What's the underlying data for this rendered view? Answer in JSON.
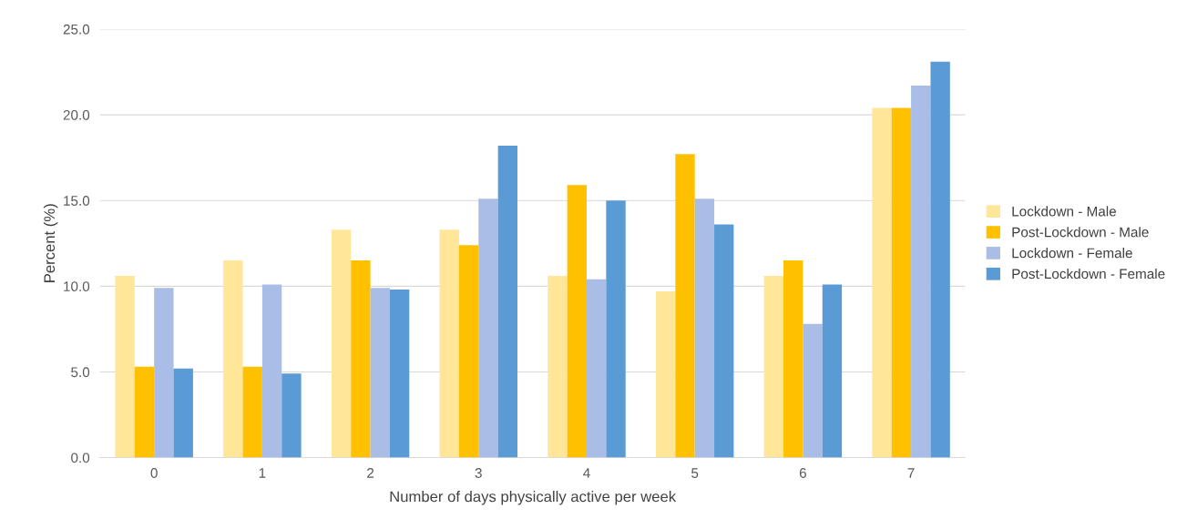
{
  "chart_data": {
    "type": "bar",
    "xlabel": "Number of days physically active per week",
    "ylabel": "Percent (%)",
    "categories": [
      "0",
      "1",
      "2",
      "3",
      "4",
      "5",
      "6",
      "7"
    ],
    "series": [
      {
        "name": "Lockdown - Male",
        "color": "#ffe699",
        "values": [
          10.6,
          11.5,
          13.3,
          13.3,
          10.6,
          9.7,
          10.6,
          20.4
        ]
      },
      {
        "name": "Post-Lockdown - Male",
        "color": "#ffc000",
        "values": [
          5.3,
          5.3,
          11.5,
          12.4,
          15.9,
          17.7,
          11.5,
          20.4
        ]
      },
      {
        "name": "Lockdown - Female",
        "color": "#a9bde6",
        "values": [
          9.9,
          10.1,
          9.9,
          15.1,
          10.4,
          15.1,
          7.8,
          21.7
        ]
      },
      {
        "name": "Post-Lockdown - Female",
        "color": "#5b9bd5",
        "values": [
          5.2,
          4.9,
          9.8,
          18.2,
          15.0,
          13.6,
          10.1,
          23.1
        ]
      }
    ],
    "ylim": [
      0,
      25
    ],
    "yticks": [
      {
        "value": 0,
        "label": "0.0"
      },
      {
        "value": 5,
        "label": "5.0"
      },
      {
        "value": 10,
        "label": "10.0"
      },
      {
        "value": 15,
        "label": "15.0"
      },
      {
        "value": 20,
        "label": "20.0"
      },
      {
        "value": 25,
        "label": "25.0"
      }
    ],
    "grid": "y",
    "legend": "right"
  }
}
